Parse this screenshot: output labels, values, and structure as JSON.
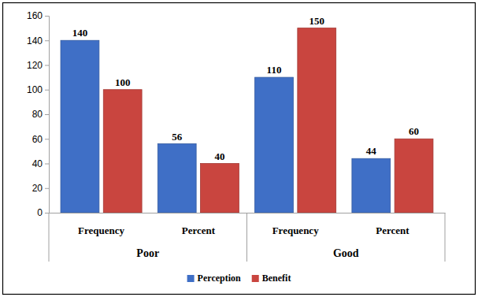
{
  "chart_data": {
    "type": "bar",
    "categories": [
      "Frequency",
      "Percent",
      "Frequency",
      "Percent"
    ],
    "category_groups": [
      "Poor",
      "Good"
    ],
    "series": [
      {
        "name": "Perception",
        "color": "#3f6fc6",
        "values": [
          140,
          56,
          110,
          44
        ]
      },
      {
        "name": "Benefit",
        "color": "#c9453f",
        "values": [
          100,
          40,
          150,
          60
        ]
      }
    ],
    "ylim": [
      0,
      160
    ],
    "yticks": [
      0,
      20,
      40,
      60,
      80,
      100,
      120,
      140,
      160
    ],
    "grid": false,
    "legend": "bottom",
    "data_labels": true
  }
}
